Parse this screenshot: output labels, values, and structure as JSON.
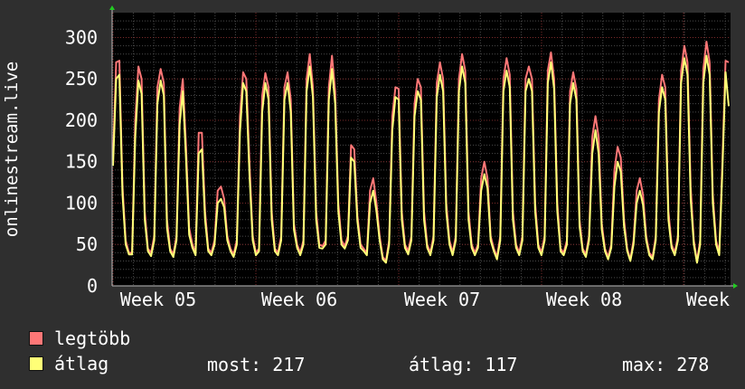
{
  "chart_data": {
    "type": "line",
    "ylabel": "onlinestream.live",
    "ylim": [
      0,
      330
    ],
    "yticks": [
      0,
      50,
      100,
      150,
      200,
      250,
      300
    ],
    "x_tick_labels": [
      "Week 05",
      "Week 06",
      "Week 07",
      "Week 08",
      "Week"
    ],
    "grid": true,
    "colors": {
      "background": "#2f2f2f",
      "plot_bg": "#000000",
      "grid": "#4a4a4a",
      "grid_major": "#7a2a2a",
      "axis": "#bbbbbb",
      "arrow": "#22cc22"
    },
    "daily_pattern_note_excluded": true,
    "series": [
      {
        "name": "legtöbb",
        "color": "#ff7777",
        "values": [
          155,
          270,
          272,
          120,
          55,
          40,
          40,
          200,
          265,
          250,
          90,
          45,
          40,
          60,
          240,
          262,
          245,
          80,
          45,
          38,
          60,
          215,
          250,
          170,
          70,
          50,
          40,
          185,
          185,
          90,
          45,
          40,
          55,
          115,
          120,
          105,
          60,
          45,
          38,
          55,
          205,
          258,
          250,
          150,
          60,
          40,
          45,
          230,
          257,
          240,
          90,
          45,
          40,
          60,
          240,
          258,
          225,
          75,
          50,
          40,
          55,
          250,
          280,
          240,
          90,
          50,
          48,
          55,
          240,
          278,
          235,
          100,
          55,
          48,
          60,
          170,
          165,
          85,
          50,
          45,
          40,
          115,
          130,
          100,
          60,
          35,
          30,
          55,
          205,
          240,
          238,
          90,
          50,
          42,
          60,
          220,
          250,
          240,
          90,
          50,
          40,
          60,
          245,
          270,
          250,
          100,
          55,
          40,
          60,
          250,
          280,
          260,
          90,
          50,
          40,
          50,
          130,
          150,
          130,
          60,
          45,
          35,
          60,
          250,
          275,
          255,
          90,
          50,
          40,
          60,
          250,
          265,
          250,
          100,
          50,
          40,
          60,
          260,
          282,
          250,
          100,
          45,
          40,
          55,
          235,
          258,
          238,
          80,
          45,
          38,
          60,
          180,
          205,
          180,
          75,
          45,
          35,
          50,
          140,
          168,
          155,
          80,
          45,
          32,
          55,
          115,
          130,
          110,
          60,
          40,
          35,
          60,
          225,
          255,
          240,
          90,
          50,
          40,
          60,
          260,
          290,
          270,
          120,
          55,
          30,
          55,
          262,
          295,
          270,
          110,
          55,
          40,
          150,
          272,
          270
        ]
      },
      {
        "name": "átlag",
        "color": "#ffff77",
        "values": [
          145,
          250,
          255,
          110,
          50,
          38,
          38,
          180,
          248,
          232,
          80,
          42,
          36,
          55,
          220,
          248,
          230,
          70,
          42,
          35,
          55,
          195,
          235,
          155,
          62,
          46,
          37,
          160,
          165,
          80,
          42,
          37,
          50,
          100,
          105,
          95,
          55,
          42,
          35,
          50,
          185,
          245,
          235,
          135,
          55,
          37,
          42,
          210,
          245,
          225,
          80,
          42,
          37,
          55,
          225,
          245,
          210,
          68,
          46,
          37,
          50,
          235,
          265,
          228,
          80,
          46,
          45,
          50,
          225,
          262,
          220,
          90,
          50,
          45,
          55,
          155,
          150,
          78,
          46,
          42,
          37,
          100,
          115,
          90,
          55,
          32,
          28,
          50,
          188,
          228,
          225,
          80,
          46,
          38,
          55,
          205,
          235,
          225,
          80,
          46,
          37,
          55,
          228,
          255,
          235,
          90,
          50,
          37,
          55,
          235,
          265,
          245,
          80,
          46,
          37,
          46,
          115,
          135,
          118,
          55,
          42,
          32,
          55,
          235,
          260,
          240,
          80,
          46,
          37,
          55,
          235,
          250,
          235,
          90,
          46,
          37,
          55,
          245,
          270,
          238,
          90,
          42,
          37,
          50,
          220,
          245,
          225,
          72,
          42,
          35,
          55,
          160,
          188,
          160,
          68,
          42,
          32,
          46,
          120,
          150,
          138,
          72,
          42,
          30,
          50,
          100,
          115,
          98,
          55,
          37,
          32,
          55,
          210,
          240,
          225,
          80,
          46,
          37,
          55,
          245,
          275,
          255,
          105,
          50,
          28,
          50,
          245,
          278,
          255,
          100,
          50,
          37,
          140,
          258,
          217
        ]
      }
    ]
  },
  "legend": [
    {
      "label": "legtöbb",
      "color": "#ff7777"
    },
    {
      "label": "átlag",
      "color": "#ffff77"
    }
  ],
  "stats": {
    "current": "most: 217",
    "average": "átlag: 117",
    "maximum": "max: 278"
  }
}
